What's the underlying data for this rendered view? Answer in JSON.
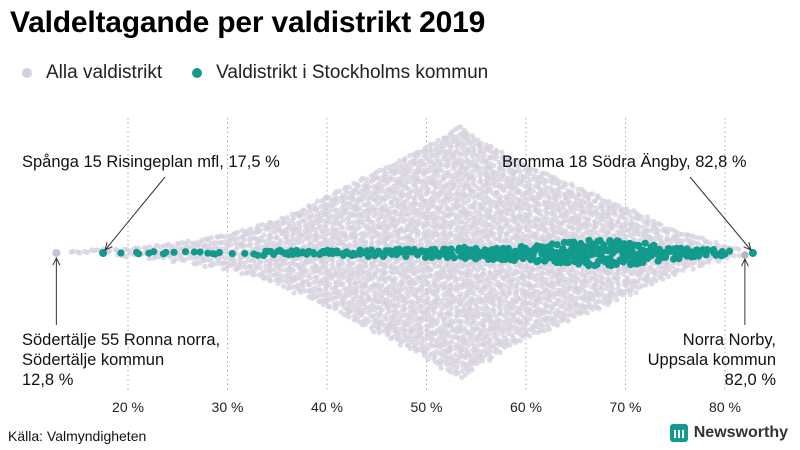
{
  "title": "Valdeltagande per valdistrikt 2019",
  "legend": {
    "all_label": "Alla valdistrikt",
    "stockholm_label": "Valdistrikt i Stockholms kommun"
  },
  "colors": {
    "all": "#d5d0de",
    "stockholm": "#129a8c",
    "grid": "#aaaaaa"
  },
  "annotations": {
    "min_stockholm": "Spånga 15 Risingeplan mfl, 17,5 %",
    "max_stockholm": "Bromma 18 Södra Ängby, 82,8 %",
    "min_all_line1": "Södertälje 55 Ronna norra,",
    "min_all_line2": "Södertälje kommun",
    "min_all_line3": "12,8 %",
    "max_all_line1": "Norra Norby,",
    "max_all_line2": "Uppsala kommun",
    "max_all_line3": "82,0 %"
  },
  "source": "Källa: Valmyndigheten",
  "brand": "Newsworthy",
  "chart_data": {
    "type": "beeswarm",
    "title": "Valdeltagande per valdistrikt 2019",
    "xlabel": "",
    "xlim": [
      12,
      84
    ],
    "ticks": [
      20,
      30,
      40,
      50,
      60,
      70,
      80
    ],
    "tick_labels": [
      "20 %",
      "30 %",
      "40 %",
      "50 %",
      "60 %",
      "70 %",
      "80 %"
    ],
    "series": [
      {
        "name": "Alla valdistrikt",
        "distribution": {
          "min": 12.8,
          "max": 82.0,
          "peak": 53.5,
          "density_profile": [
            {
              "x": 15,
              "d": 1
            },
            {
              "x": 20,
              "d": 3
            },
            {
              "x": 25,
              "d": 8
            },
            {
              "x": 30,
              "d": 16
            },
            {
              "x": 35,
              "d": 30
            },
            {
              "x": 40,
              "d": 52
            },
            {
              "x": 45,
              "d": 76
            },
            {
              "x": 50,
              "d": 100
            },
            {
              "x": 53.5,
              "d": 120
            },
            {
              "x": 55,
              "d": 108
            },
            {
              "x": 60,
              "d": 82
            },
            {
              "x": 65,
              "d": 62
            },
            {
              "x": 70,
              "d": 42
            },
            {
              "x": 75,
              "d": 20
            },
            {
              "x": 80,
              "d": 6
            },
            {
              "x": 82,
              "d": 1
            }
          ]
        }
      },
      {
        "name": "Valdistrikt i Stockholms kommun",
        "distribution": {
          "min": 17.5,
          "max": 82.8,
          "peak": 68,
          "density_profile": [
            {
              "x": 17.5,
              "d": 1
            },
            {
              "x": 20,
              "d": 1
            },
            {
              "x": 25,
              "d": 2
            },
            {
              "x": 30,
              "d": 2
            },
            {
              "x": 35,
              "d": 3
            },
            {
              "x": 40,
              "d": 3
            },
            {
              "x": 45,
              "d": 4
            },
            {
              "x": 50,
              "d": 5
            },
            {
              "x": 55,
              "d": 7
            },
            {
              "x": 60,
              "d": 9
            },
            {
              "x": 65,
              "d": 13
            },
            {
              "x": 68,
              "d": 16
            },
            {
              "x": 70,
              "d": 14
            },
            {
              "x": 75,
              "d": 7
            },
            {
              "x": 80,
              "d": 3
            },
            {
              "x": 82.8,
              "d": 1
            }
          ]
        }
      }
    ],
    "highlighted_points": [
      {
        "label": "Spånga 15 Risingeplan mfl",
        "value": 17.5,
        "series": "Valdistrikt i Stockholms kommun"
      },
      {
        "label": "Bromma 18 Södra Ängby",
        "value": 82.8,
        "series": "Valdistrikt i Stockholms kommun"
      },
      {
        "label": "Södertälje 55 Ronna norra, Södertälje kommun",
        "value": 12.8,
        "series": "Alla valdistrikt"
      },
      {
        "label": "Norra Norby, Uppsala kommun",
        "value": 82.0,
        "series": "Alla valdistrikt"
      }
    ]
  }
}
